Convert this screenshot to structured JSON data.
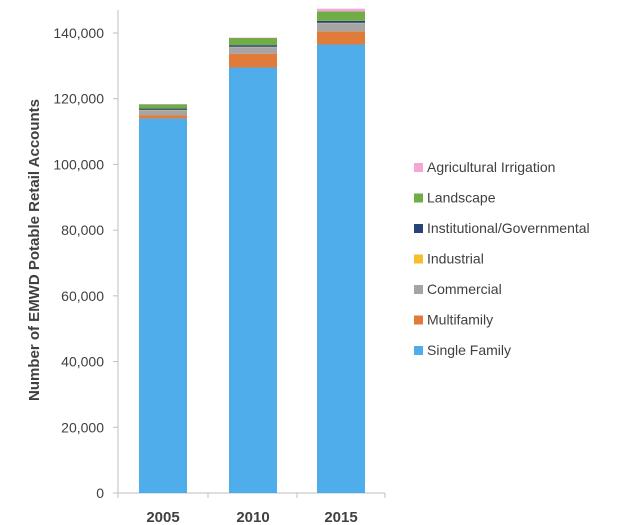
{
  "chart_data": {
    "type": "bar",
    "stacked": true,
    "categories": [
      "2005",
      "2010",
      "2015"
    ],
    "ylabel": "Number of EMWD Potable Retail Accounts",
    "xlabel": "",
    "ylim": [
      0,
      147000
    ],
    "yticks": [
      0,
      20000,
      40000,
      60000,
      80000,
      100000,
      120000,
      140000
    ],
    "ytick_labels": [
      "0",
      "20,000",
      "40,000",
      "60,000",
      "80,000",
      "100,000",
      "120,000",
      "140,000"
    ],
    "grid": false,
    "legend_position": "right",
    "series": [
      {
        "name": "Single Family",
        "color": "#4EADEA",
        "values": [
          114000,
          129500,
          136500
        ]
      },
      {
        "name": "Multifamily",
        "color": "#E07B39",
        "values": [
          1000,
          4200,
          4000
        ]
      },
      {
        "name": "Commercial",
        "color": "#A5A5A5",
        "values": [
          1500,
          2000,
          2500
        ]
      },
      {
        "name": "Industrial",
        "color": "#F5BE2C",
        "values": [
          100,
          100,
          100
        ]
      },
      {
        "name": "Institutional/Governmental",
        "color": "#264478",
        "values": [
          400,
          500,
          600
        ]
      },
      {
        "name": "Landscape",
        "color": "#70AD47",
        "values": [
          1300,
          2200,
          2900
        ]
      },
      {
        "name": "Agricultural Irrigation",
        "color": "#F4A6D7",
        "values": [
          100,
          100,
          800
        ]
      }
    ]
  }
}
